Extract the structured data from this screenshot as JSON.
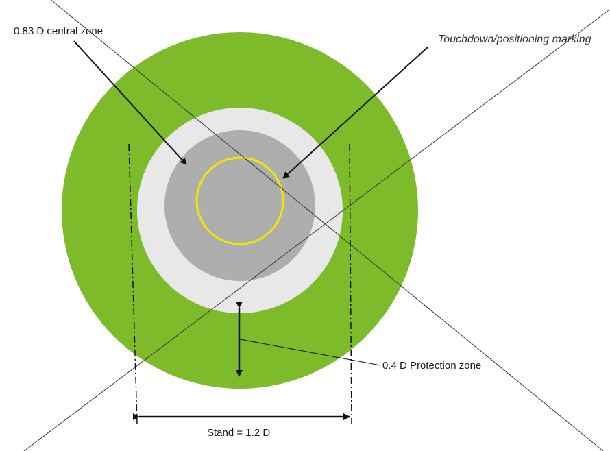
{
  "labels": {
    "central_zone": "0.83 D central zone",
    "touchdown_marking": "Touchdown/positioning marking",
    "protection_zone": "0.4 D Protection zone",
    "stand": "Stand = 1.2 D"
  },
  "colors": {
    "stand_ring": "#7dbb2a",
    "surface_white": "#f2f2f2",
    "central_zone": "#a8a8a8",
    "touchdown_circle": "#e8e000",
    "lines": "#111111"
  }
}
